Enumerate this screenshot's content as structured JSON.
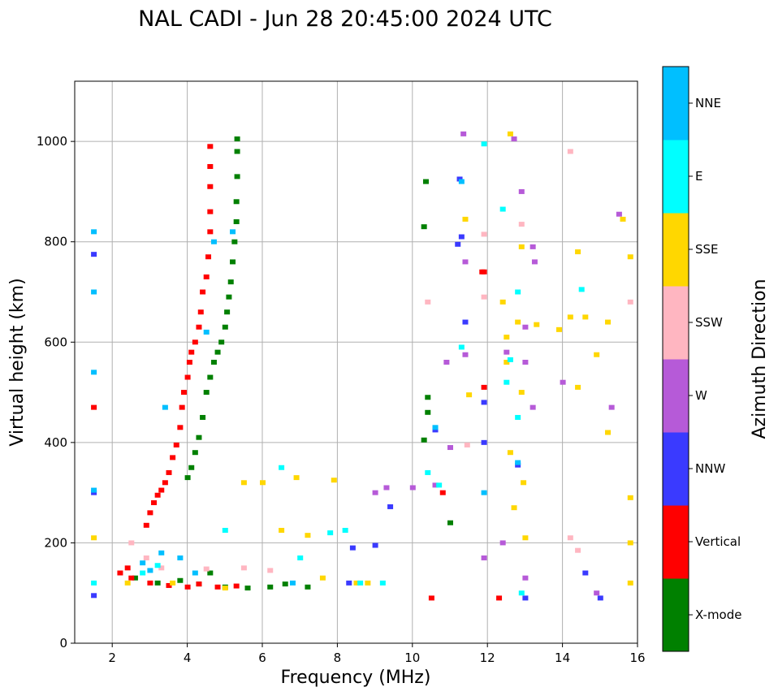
{
  "chart_data": {
    "type": "scatter",
    "title": "NAL CADI - Jun 28 20:45:00 2024 UTC",
    "xlabel": "Frequency (MHz)",
    "ylabel": "Virtual height (km)",
    "xlim": [
      1,
      16
    ],
    "ylim": [
      0,
      1120
    ],
    "grid": true,
    "xticks": [
      2,
      4,
      6,
      8,
      10,
      12,
      14,
      16
    ],
    "yticks": [
      0,
      200,
      400,
      600,
      800,
      1000
    ],
    "colorbar": {
      "label": "Azimuth Direction",
      "categories": [
        "X-mode",
        "Vertical",
        "NNW",
        "W",
        "SSW",
        "SSE",
        "E",
        "NNE"
      ],
      "colors": [
        "#008000",
        "#ff0000",
        "#3a3aff",
        "#b65ad8",
        "#ffb6c1",
        "#ffd700",
        "#00ffff",
        "#00bfff"
      ]
    },
    "series": [
      {
        "name": "X-mode",
        "points": [
          [
            4.0,
            330
          ],
          [
            4.1,
            350
          ],
          [
            4.2,
            380
          ],
          [
            4.3,
            410
          ],
          [
            4.4,
            450
          ],
          [
            4.5,
            500
          ],
          [
            4.6,
            530
          ],
          [
            4.7,
            560
          ],
          [
            4.8,
            580
          ],
          [
            4.9,
            600
          ],
          [
            5.0,
            630
          ],
          [
            5.05,
            660
          ],
          [
            5.1,
            690
          ],
          [
            5.15,
            720
          ],
          [
            5.2,
            760
          ],
          [
            5.25,
            800
          ],
          [
            5.3,
            840
          ],
          [
            5.3,
            880
          ],
          [
            5.32,
            930
          ],
          [
            5.32,
            980
          ],
          [
            5.32,
            1005
          ],
          [
            2.6,
            130
          ],
          [
            3.2,
            120
          ],
          [
            3.8,
            125
          ],
          [
            4.3,
            118
          ],
          [
            5.0,
            112
          ],
          [
            5.6,
            110
          ],
          [
            6.2,
            112
          ],
          [
            6.6,
            118
          ],
          [
            7.2,
            112
          ],
          [
            4.6,
            140
          ],
          [
            10.3,
            830
          ],
          [
            10.35,
            920
          ],
          [
            10.4,
            490
          ],
          [
            10.4,
            460
          ],
          [
            10.3,
            405
          ],
          [
            11.0,
            240
          ]
        ]
      },
      {
        "name": "Vertical",
        "points": [
          [
            2.9,
            235
          ],
          [
            3.0,
            260
          ],
          [
            3.1,
            280
          ],
          [
            3.2,
            295
          ],
          [
            3.3,
            305
          ],
          [
            3.4,
            320
          ],
          [
            3.5,
            340
          ],
          [
            3.6,
            370
          ],
          [
            3.7,
            395
          ],
          [
            3.8,
            430
          ],
          [
            3.85,
            470
          ],
          [
            3.9,
            500
          ],
          [
            4.0,
            530
          ],
          [
            4.05,
            560
          ],
          [
            4.1,
            580
          ],
          [
            4.2,
            600
          ],
          [
            4.3,
            630
          ],
          [
            4.35,
            660
          ],
          [
            4.4,
            700
          ],
          [
            4.5,
            730
          ],
          [
            4.55,
            770
          ],
          [
            4.6,
            820
          ],
          [
            4.6,
            860
          ],
          [
            4.6,
            910
          ],
          [
            4.6,
            950
          ],
          [
            4.6,
            990
          ],
          [
            1.5,
            470
          ],
          [
            2.2,
            140
          ],
          [
            2.5,
            130
          ],
          [
            3.0,
            120
          ],
          [
            3.5,
            115
          ],
          [
            4.0,
            112
          ],
          [
            4.3,
            118
          ],
          [
            4.8,
            112
          ],
          [
            5.3,
            114
          ],
          [
            2.4,
            150
          ],
          [
            11.9,
            510
          ],
          [
            11.85,
            740
          ],
          [
            10.8,
            300
          ],
          [
            10.5,
            90
          ],
          [
            12.3,
            90
          ],
          [
            11.9,
            740
          ]
        ]
      },
      {
        "name": "NNW",
        "points": [
          [
            1.5,
            95
          ],
          [
            1.5,
            300
          ],
          [
            1.5,
            775
          ],
          [
            8.3,
            120
          ],
          [
            8.4,
            190
          ],
          [
            9.0,
            195
          ],
          [
            9.4,
            272
          ],
          [
            10.6,
            425
          ],
          [
            11.2,
            795
          ],
          [
            11.25,
            925
          ],
          [
            11.3,
            810
          ],
          [
            11.4,
            640
          ],
          [
            11.9,
            400
          ],
          [
            11.9,
            480
          ],
          [
            12.8,
            355
          ],
          [
            13.0,
            90
          ],
          [
            14.6,
            140
          ],
          [
            15.0,
            90
          ]
        ]
      },
      {
        "name": "W",
        "points": [
          [
            9.0,
            300
          ],
          [
            9.3,
            310
          ],
          [
            10.0,
            310
          ],
          [
            10.6,
            315
          ],
          [
            10.9,
            560
          ],
          [
            11.0,
            390
          ],
          [
            11.35,
            1015
          ],
          [
            11.4,
            760
          ],
          [
            11.4,
            575
          ],
          [
            11.9,
            170
          ],
          [
            12.4,
            200
          ],
          [
            12.5,
            580
          ],
          [
            12.7,
            1005
          ],
          [
            12.9,
            900
          ],
          [
            13.0,
            630
          ],
          [
            13.0,
            560
          ],
          [
            13.2,
            790
          ],
          [
            13.25,
            760
          ],
          [
            13.2,
            470
          ],
          [
            13.0,
            130
          ],
          [
            14.0,
            520
          ],
          [
            14.9,
            100
          ],
          [
            15.3,
            470
          ],
          [
            15.5,
            855
          ]
        ]
      },
      {
        "name": "SSW",
        "points": [
          [
            2.5,
            200
          ],
          [
            2.9,
            170
          ],
          [
            3.3,
            150
          ],
          [
            4.5,
            148
          ],
          [
            5.5,
            150
          ],
          [
            6.2,
            145
          ],
          [
            10.4,
            680
          ],
          [
            11.45,
            395
          ],
          [
            11.9,
            815
          ],
          [
            11.9,
            690
          ],
          [
            12.9,
            835
          ],
          [
            14.2,
            210
          ],
          [
            14.2,
            980
          ],
          [
            14.4,
            185
          ],
          [
            15.8,
            680
          ]
        ]
      },
      {
        "name": "SSE",
        "points": [
          [
            1.5,
            210
          ],
          [
            2.4,
            120
          ],
          [
            3.6,
            120
          ],
          [
            5.0,
            110
          ],
          [
            5.5,
            320
          ],
          [
            6.0,
            320
          ],
          [
            6.5,
            225
          ],
          [
            6.9,
            330
          ],
          [
            7.2,
            215
          ],
          [
            7.6,
            130
          ],
          [
            7.9,
            325
          ],
          [
            8.5,
            120
          ],
          [
            8.8,
            120
          ],
          [
            11.4,
            845
          ],
          [
            11.5,
            495
          ],
          [
            12.4,
            680
          ],
          [
            12.5,
            610
          ],
          [
            12.5,
            560
          ],
          [
            12.6,
            1015
          ],
          [
            12.6,
            380
          ],
          [
            12.7,
            270
          ],
          [
            12.8,
            640
          ],
          [
            12.9,
            790
          ],
          [
            12.9,
            500
          ],
          [
            12.95,
            320
          ],
          [
            13.0,
            210
          ],
          [
            13.3,
            635
          ],
          [
            13.9,
            625
          ],
          [
            14.2,
            650
          ],
          [
            14.4,
            780
          ],
          [
            14.4,
            510
          ],
          [
            14.6,
            650
          ],
          [
            14.9,
            575
          ],
          [
            15.2,
            640
          ],
          [
            15.2,
            420
          ],
          [
            15.6,
            845
          ],
          [
            15.8,
            770
          ],
          [
            15.8,
            290
          ],
          [
            15.8,
            200
          ],
          [
            15.8,
            120
          ]
        ]
      },
      {
        "name": "E",
        "points": [
          [
            1.5,
            120
          ],
          [
            2.8,
            140
          ],
          [
            3.2,
            155
          ],
          [
            5.0,
            225
          ],
          [
            6.5,
            350
          ],
          [
            7.0,
            170
          ],
          [
            7.8,
            220
          ],
          [
            8.2,
            225
          ],
          [
            8.6,
            120
          ],
          [
            9.2,
            120
          ],
          [
            10.4,
            340
          ],
          [
            10.7,
            315
          ],
          [
            11.3,
            590
          ],
          [
            11.9,
            995
          ],
          [
            12.4,
            865
          ],
          [
            12.5,
            520
          ],
          [
            12.6,
            565
          ],
          [
            12.8,
            700
          ],
          [
            12.8,
            450
          ],
          [
            12.9,
            100
          ],
          [
            14.5,
            705
          ]
        ]
      },
      {
        "name": "NNE",
        "points": [
          [
            1.5,
            540
          ],
          [
            1.5,
            305
          ],
          [
            1.5,
            700
          ],
          [
            1.5,
            820
          ],
          [
            2.8,
            160
          ],
          [
            3.0,
            145
          ],
          [
            3.3,
            180
          ],
          [
            3.4,
            470
          ],
          [
            3.8,
            170
          ],
          [
            4.2,
            140
          ],
          [
            4.5,
            620
          ],
          [
            4.7,
            800
          ],
          [
            5.2,
            820
          ],
          [
            6.8,
            120
          ],
          [
            10.6,
            430
          ],
          [
            11.3,
            920
          ],
          [
            11.9,
            300
          ],
          [
            12.8,
            360
          ]
        ]
      }
    ]
  }
}
